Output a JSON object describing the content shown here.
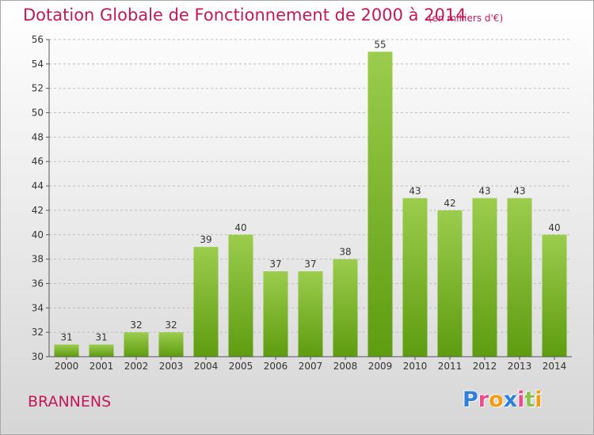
{
  "title": "Dotation Globale de Fonctionnement de 2000 à 2014",
  "unit": "(en milliers d'€)",
  "commune": "BRANNENS",
  "logo": {
    "letters": [
      "P",
      "r",
      "o",
      "x",
      "i",
      "t",
      "i"
    ],
    "colors": [
      "#2e7fd9",
      "#e94d8b",
      "#f39c12",
      "#2e7fd9",
      "#e94d8b",
      "#8bc34a",
      "#f39c12"
    ]
  },
  "colors": {
    "bar_top": "#9ccc4d",
    "bar_bottom": "#5e9c10",
    "grid": "#bdbdbd",
    "text": "#333333",
    "accent": "#c2185b"
  },
  "chart_data": {
    "type": "bar",
    "categories": [
      "2000",
      "2001",
      "2002",
      "2003",
      "2004",
      "2005",
      "2006",
      "2007",
      "2008",
      "2009",
      "2010",
      "2011",
      "2012",
      "2013",
      "2014"
    ],
    "values": [
      31,
      31,
      32,
      32,
      39,
      40,
      37,
      37,
      38,
      55,
      43,
      42,
      43,
      43,
      40
    ],
    "title": "Dotation Globale de Fonctionnement de 2000 à 2014",
    "ylim": [
      30,
      56
    ],
    "yticks": [
      30,
      32,
      34,
      36,
      38,
      40,
      42,
      44,
      46,
      48,
      50,
      52,
      54,
      56
    ],
    "grid": true
  }
}
